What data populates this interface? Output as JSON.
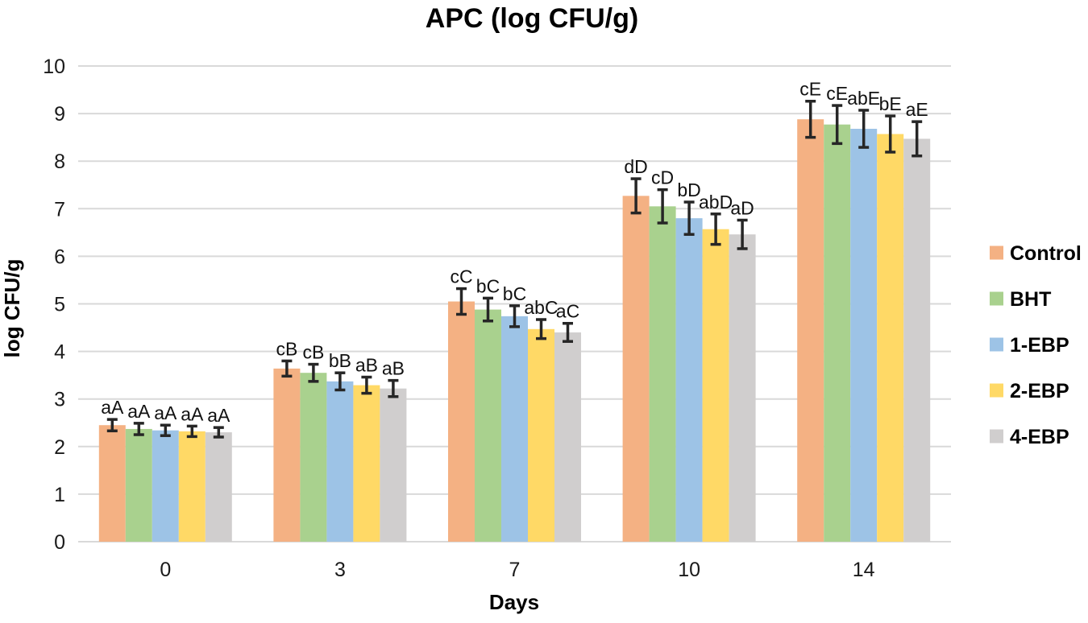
{
  "chart_data": {
    "type": "bar",
    "title": "APC (log CFU/g)",
    "xlabel": "Days",
    "ylabel": "log CFU/g",
    "ylim": [
      0,
      10
    ],
    "y_ticks": [
      0,
      1,
      2,
      3,
      4,
      5,
      6,
      7,
      8,
      9,
      10
    ],
    "grid": "horizontal",
    "grid_color": "#D9D9D9",
    "error_bar_color": "#262626",
    "legend_position": "right",
    "categories": [
      "0",
      "3",
      "7",
      "10",
      "14"
    ],
    "series": [
      {
        "name": "Control",
        "color": "#F4B183",
        "values": [
          2.45,
          3.64,
          5.05,
          7.27,
          8.88
        ],
        "errors": [
          0.12,
          0.16,
          0.27,
          0.36,
          0.38
        ],
        "point_labels": [
          "aA",
          "cB",
          "cC",
          "dD",
          "cE"
        ]
      },
      {
        "name": "BHT",
        "color": "#A9D18E",
        "values": [
          2.37,
          3.55,
          4.88,
          7.05,
          8.77
        ],
        "errors": [
          0.12,
          0.18,
          0.24,
          0.35,
          0.4
        ],
        "point_labels": [
          "aA",
          "cB",
          "bC",
          "cD",
          "cE"
        ]
      },
      {
        "name": "1-EBP",
        "color": "#9DC3E6",
        "values": [
          2.34,
          3.37,
          4.74,
          6.8,
          8.68
        ],
        "errors": [
          0.11,
          0.18,
          0.22,
          0.34,
          0.39
        ],
        "point_labels": [
          "aA",
          "bB",
          "bC",
          "bD",
          "abE"
        ]
      },
      {
        "name": "2-EBP",
        "color": "#FFD966",
        "values": [
          2.32,
          3.29,
          4.47,
          6.57,
          8.57
        ],
        "errors": [
          0.11,
          0.17,
          0.2,
          0.32,
          0.38
        ],
        "point_labels": [
          "aA",
          "aB",
          "abC",
          "abD",
          "bE"
        ]
      },
      {
        "name": "4-EBP",
        "color": "#D0CECE",
        "values": [
          2.3,
          3.22,
          4.4,
          6.46,
          8.47
        ],
        "errors": [
          0.1,
          0.17,
          0.19,
          0.3,
          0.36
        ],
        "point_labels": [
          "aA",
          "aB",
          "aC",
          "aD",
          "aE"
        ]
      }
    ]
  }
}
